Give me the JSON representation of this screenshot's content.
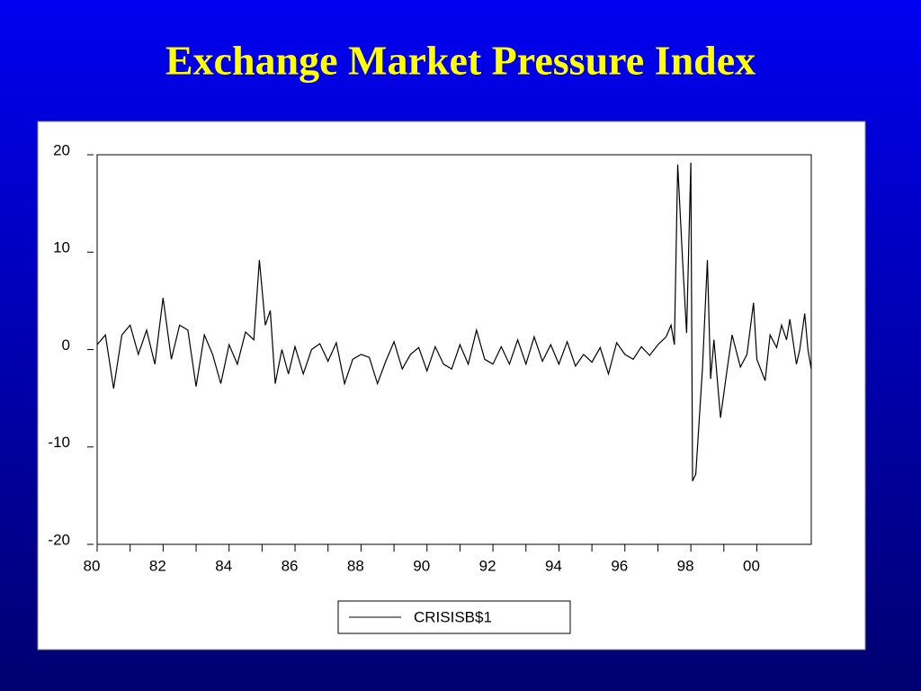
{
  "chart_data": {
    "type": "line",
    "title": "Exchange Market Pressure Index",
    "x": [
      80,
      80.25,
      80.5,
      80.75,
      81,
      81.25,
      81.5,
      81.75,
      82,
      82.25,
      82.5,
      82.75,
      83,
      83.25,
      83.5,
      83.75,
      84,
      84.25,
      84.5,
      84.75,
      84.92,
      85.1,
      85.25,
      85.4,
      85.6,
      85.8,
      86,
      86.25,
      86.5,
      86.75,
      87,
      87.25,
      87.5,
      87.75,
      88,
      88.25,
      88.5,
      88.75,
      89,
      89.25,
      89.5,
      89.75,
      90,
      90.25,
      90.5,
      90.75,
      91,
      91.25,
      91.5,
      91.75,
      92,
      92.25,
      92.5,
      92.75,
      93,
      93.25,
      93.5,
      93.75,
      94,
      94.25,
      94.5,
      94.75,
      95,
      95.25,
      95.5,
      95.75,
      96,
      96.25,
      96.5,
      96.75,
      97,
      97.25,
      97.4,
      97.5,
      97.6,
      97.75,
      97.87,
      98,
      98.05,
      98.15,
      98.35,
      98.5,
      98.6,
      98.7,
      98.9,
      99.1,
      99.25,
      99.5,
      99.7,
      99.9,
      100,
      100.25,
      100.4,
      100.6,
      100.75,
      100.9,
      101,
      101.2,
      101.3,
      101.45,
      101.55,
      101.65
    ],
    "series": [
      {
        "name": "CRISISB$1",
        "color": "#000000",
        "values": [
          0.5,
          1.5,
          -4,
          1.5,
          2.5,
          -0.5,
          2,
          -1.5,
          5.3,
          -1,
          2.5,
          2,
          -3.8,
          1.5,
          -0.5,
          -3.5,
          0.5,
          -1.5,
          1.8,
          1,
          9.2,
          2.5,
          4,
          -3.5,
          0,
          -2.5,
          0.3,
          -2.5,
          0,
          0.6,
          -1.2,
          0.7,
          -3.5,
          -1,
          -0.5,
          -0.8,
          -3.5,
          -1.2,
          0.8,
          -2,
          -0.5,
          0.2,
          -2.2,
          0.3,
          -1.5,
          -2,
          0.5,
          -1.5,
          2,
          -1,
          -1.5,
          0.3,
          -1.5,
          1,
          -1.5,
          1.3,
          -1.2,
          0.5,
          -1.5,
          0.8,
          -1.7,
          -0.5,
          -1.3,
          0.2,
          -2.5,
          0.7,
          -0.5,
          -1,
          0.3,
          -0.6,
          0.5,
          1.3,
          2.5,
          0.5,
          19,
          9,
          1.7,
          19.2,
          -13.5,
          -12.8,
          -2,
          9.2,
          -3,
          1,
          -7,
          -2,
          1.5,
          -1.8,
          -0.5,
          4.8,
          -1,
          -3.2,
          1.5,
          0.2,
          2.5,
          1,
          3.1,
          -1.5,
          0,
          3.7,
          0,
          -2
        ]
      }
    ],
    "xlim": [
      80,
      101.65
    ],
    "ylim": [
      -20,
      20
    ],
    "xticks": [
      80,
      82,
      84,
      86,
      88,
      90,
      92,
      94,
      96,
      98,
      {
        "value": 100,
        "label": "00"
      }
    ],
    "yticks": [
      -20,
      -10,
      0,
      10,
      20
    ]
  }
}
